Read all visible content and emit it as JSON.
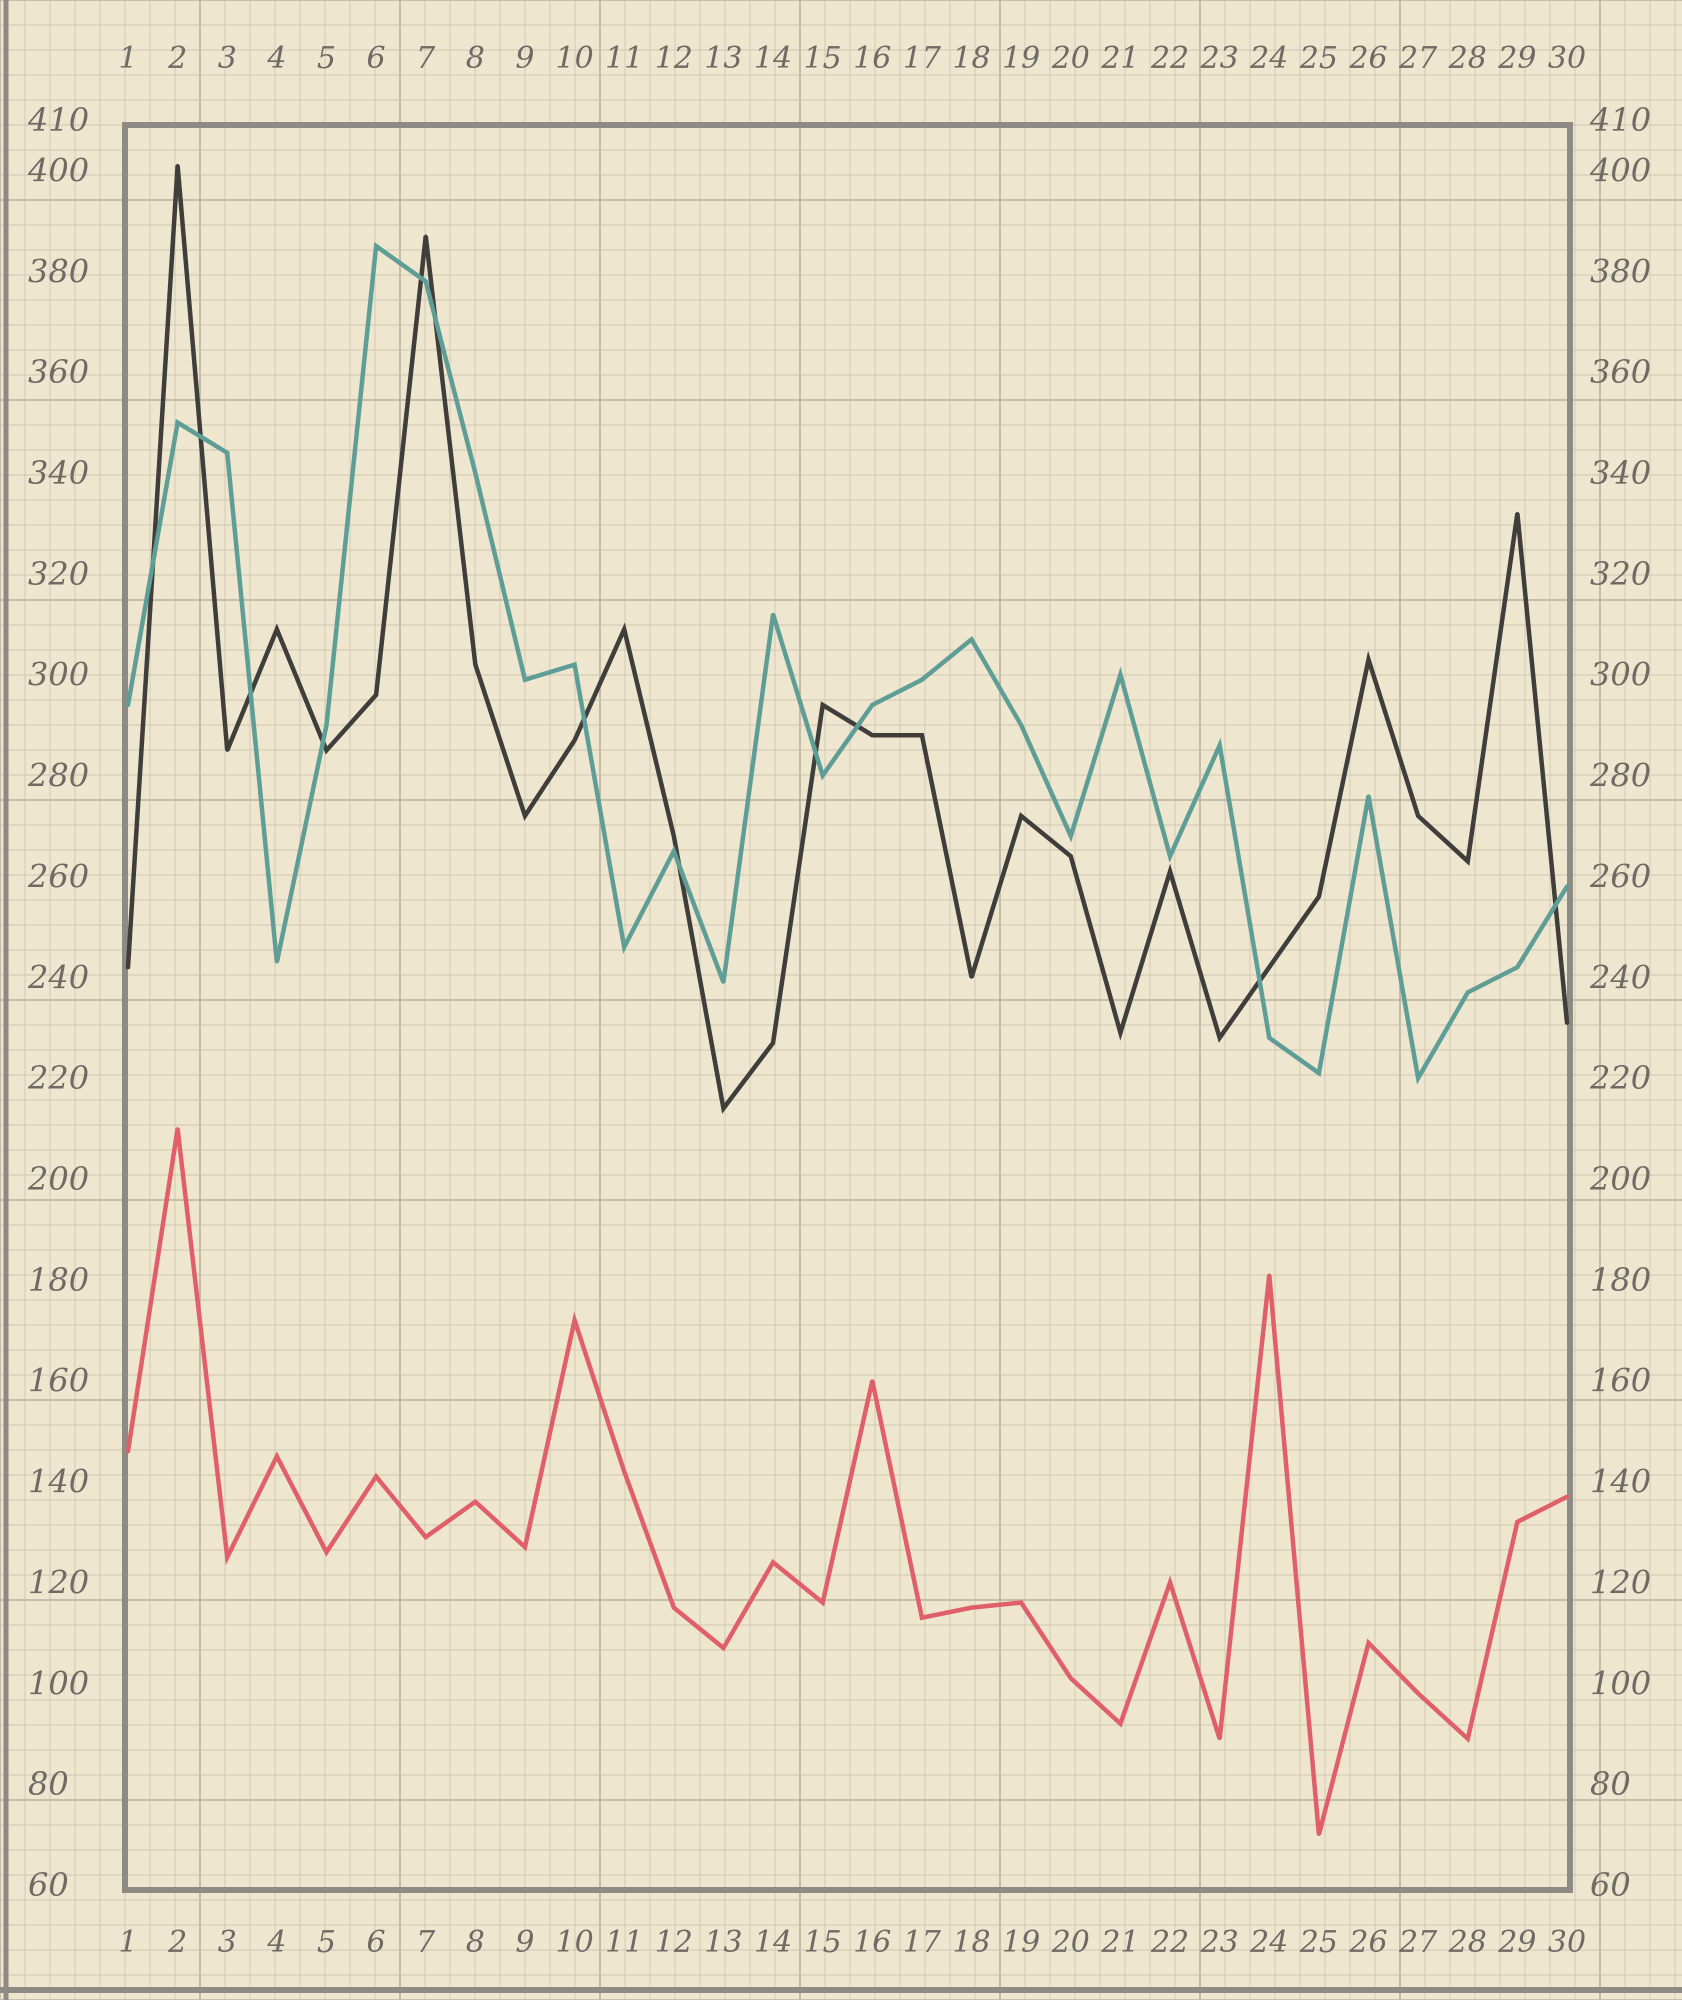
{
  "chart_data": {
    "type": "line",
    "x": [
      1,
      2,
      3,
      4,
      5,
      6,
      7,
      8,
      9,
      10,
      11,
      12,
      13,
      14,
      15,
      16,
      17,
      18,
      19,
      20,
      21,
      22,
      23,
      24,
      25,
      26,
      27,
      28,
      29,
      30
    ],
    "x_tick_labels": [
      "1",
      "2",
      "3",
      "4",
      "5",
      "6",
      "7",
      "8",
      "9",
      "10",
      "11",
      "12",
      "13",
      "14",
      "15",
      "16",
      "17",
      "18",
      "19",
      "20",
      "21",
      "22",
      "23",
      "24",
      "25",
      "26",
      "27",
      "28",
      "29",
      "30"
    ],
    "y_ticks_left": [
      "60",
      "80",
      "100",
      "120",
      "140",
      "160",
      "180",
      "200",
      "220",
      "240",
      "260",
      "280",
      "300",
      "320",
      "340",
      "360",
      "380",
      "400",
      "410"
    ],
    "y_ticks_right": [
      "60",
      "80",
      "100",
      "120",
      "140",
      "160",
      "180",
      "200",
      "220",
      "240",
      "260",
      "280",
      "300",
      "320",
      "340",
      "360",
      "380",
      "400",
      "410"
    ],
    "ylim": [
      60,
      410
    ],
    "xlim": [
      1,
      30
    ],
    "grid": true,
    "legend": "none",
    "series": [
      {
        "color": "#3f3e3b",
        "values": [
          242,
          401,
          285,
          309,
          285,
          296,
          387,
          302,
          272,
          287,
          309,
          268,
          214,
          227,
          294,
          288,
          288,
          240,
          272,
          264,
          229,
          261,
          228,
          242,
          256,
          303,
          272,
          263,
          332,
          231
        ]
      },
      {
        "color": "#5e9e96",
        "values": [
          294,
          350,
          344,
          243,
          290,
          385,
          378,
          340,
          299,
          302,
          246,
          265,
          239,
          312,
          280,
          294,
          299,
          307,
          290,
          268,
          300,
          264,
          286,
          228,
          221,
          276,
          220,
          237,
          242,
          258
        ]
      },
      {
        "color": "#e0606a",
        "values": [
          146,
          210,
          125,
          145,
          126,
          141,
          129,
          136,
          127,
          172,
          142,
          115,
          107,
          124,
          116,
          160,
          113,
          115,
          116,
          101,
          92,
          120,
          89,
          181,
          70,
          108,
          98,
          89,
          132,
          137
        ]
      }
    ],
    "colors": {
      "paper": "#efe6cf",
      "grid_minor": "#cfc6b3",
      "grid_major": "#b9b09e",
      "frame": "#8e8b86"
    }
  }
}
